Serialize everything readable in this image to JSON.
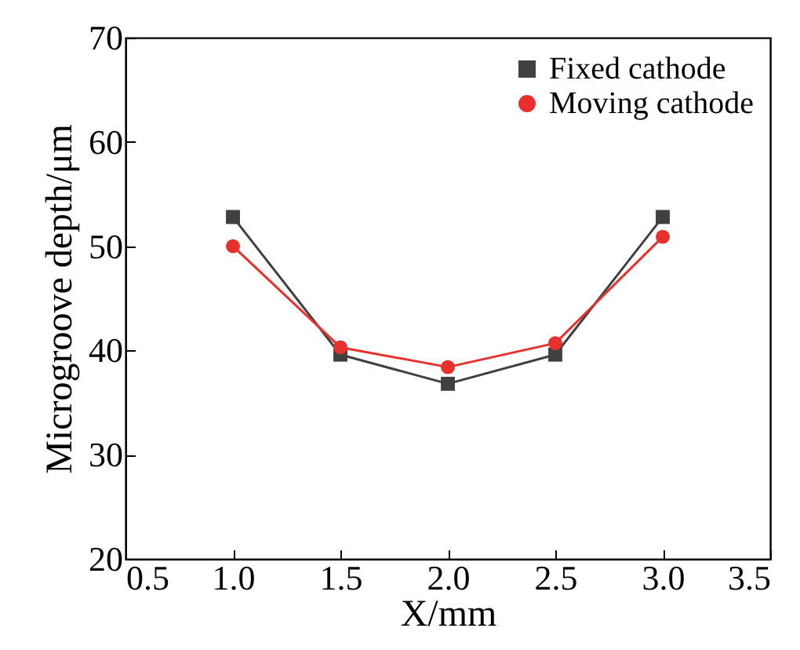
{
  "chart_data": {
    "type": "line",
    "xlabel": "X/mm",
    "ylabel": "Microgroove depth/μm",
    "x": [
      1.0,
      1.5,
      2.0,
      2.5,
      3.0
    ],
    "series": [
      {
        "name": "Fixed cathode",
        "color": "#404040",
        "marker": "square",
        "values": [
          52.8,
          39.6,
          36.8,
          39.6,
          52.8
        ]
      },
      {
        "name": "Moving cathode",
        "color": "#e8302c",
        "marker": "circle",
        "values": [
          50.0,
          40.3,
          38.4,
          40.7,
          50.9
        ]
      }
    ],
    "xlim": [
      0.5,
      3.5
    ],
    "xticks": [
      {
        "value": 0.5,
        "label": "0.5"
      },
      {
        "value": 1.0,
        "label": "1.0"
      },
      {
        "value": 1.5,
        "label": "1.5"
      },
      {
        "value": 2.0,
        "label": "2.0"
      },
      {
        "value": 2.5,
        "label": "2.5"
      },
      {
        "value": 3.0,
        "label": "3.0"
      },
      {
        "value": 3.5,
        "label": "3.5"
      }
    ],
    "ylim": [
      20,
      70
    ],
    "yticks": [
      20,
      30,
      40,
      50,
      60,
      70
    ],
    "grid": false,
    "legend": "top right",
    "line_style": "solid"
  }
}
